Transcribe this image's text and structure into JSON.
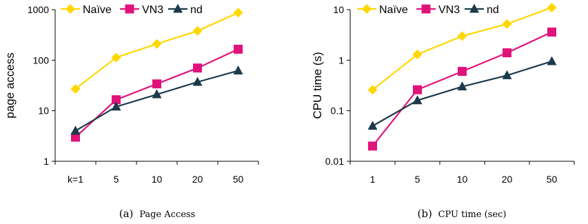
{
  "chart_data": [
    {
      "type": "line",
      "ylabel": "page access",
      "yscale": "log",
      "ylim": [
        1,
        1000
      ],
      "yticks": [
        "1",
        "10",
        "100",
        "1000"
      ],
      "categories": [
        "k=1",
        "5",
        "10",
        "20",
        "50"
      ],
      "series": [
        {
          "name": "Naïve",
          "color": "#ffd700",
          "marker": "diamond",
          "values": [
            27,
            113,
            210,
            380,
            870
          ]
        },
        {
          "name": "VN3",
          "color": "#e0137a",
          "marker": "square",
          "values": [
            3,
            16.5,
            34,
            70,
            165
          ]
        },
        {
          "name": "nd",
          "color": "#1b3a4b",
          "marker": "triangle",
          "values": [
            4,
            12,
            21,
            37,
            62
          ]
        }
      ],
      "caption_label": "(a)",
      "caption_text": "Page Access"
    },
    {
      "type": "line",
      "ylabel": "CPU time (s)",
      "yscale": "log",
      "ylim": [
        0.01,
        10
      ],
      "yticks": [
        "0.01",
        "0.1",
        "1",
        "10"
      ],
      "categories": [
        "1",
        "5",
        "10",
        "20",
        "50"
      ],
      "series": [
        {
          "name": "Naïve",
          "color": "#ffd700",
          "marker": "diamond",
          "values": [
            0.26,
            1.3,
            3.0,
            5.2,
            11
          ]
        },
        {
          "name": "VN3",
          "color": "#e0137a",
          "marker": "square",
          "values": [
            0.02,
            0.26,
            0.6,
            1.4,
            3.6
          ]
        },
        {
          "name": "nd",
          "color": "#1b3a4b",
          "marker": "triangle",
          "values": [
            0.05,
            0.16,
            0.3,
            0.5,
            0.95
          ]
        }
      ],
      "caption_label": "(b)",
      "caption_text": "CPU time (sec)"
    }
  ]
}
